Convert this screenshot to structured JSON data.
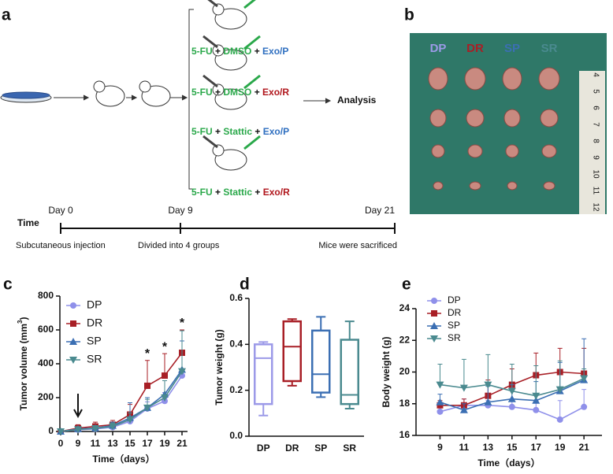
{
  "panel_labels": [
    "a",
    "b",
    "c",
    "d",
    "e"
  ],
  "panel_a": {
    "treatments": [
      [
        {
          "text": "5-FU",
          "color": "#2aa84a"
        },
        {
          "text": " + ",
          "color": "#111"
        },
        {
          "text": "DMSO",
          "color": "#2aa84a"
        },
        {
          "text": " + ",
          "color": "#111"
        },
        {
          "text": "Exo/P",
          "color": "#2f6fc0"
        }
      ],
      [
        {
          "text": "5-FU",
          "color": "#2aa84a"
        },
        {
          "text": " + ",
          "color": "#111"
        },
        {
          "text": "DMSO",
          "color": "#2aa84a"
        },
        {
          "text": " + ",
          "color": "#111"
        },
        {
          "text": "Exo/R",
          "color": "#b0161c"
        }
      ],
      [
        {
          "text": "5-FU",
          "color": "#2aa84a"
        },
        {
          "text": " + ",
          "color": "#111"
        },
        {
          "text": "Stattic",
          "color": "#2aa84a"
        },
        {
          "text": " + ",
          "color": "#111"
        },
        {
          "text": "Exo/P",
          "color": "#2f6fc0"
        }
      ],
      [
        {
          "text": "5-FU",
          "color": "#2aa84a"
        },
        {
          "text": " + ",
          "color": "#111"
        },
        {
          "text": "Stattic",
          "color": "#2aa84a"
        },
        {
          "text": " + ",
          "color": "#111"
        },
        {
          "text": "Exo/R",
          "color": "#b0161c"
        }
      ]
    ],
    "analysis": "Analysis",
    "time": "Time",
    "days": [
      "Day 0",
      "Day 9",
      "Day 21"
    ],
    "events": [
      "Subcutaneous injection",
      "Divided into 4 groups",
      "Mice were sacrificed"
    ]
  },
  "panel_b": {
    "groups": [
      {
        "text": "DP",
        "color": "#9c9ae8"
      },
      {
        "text": "DR",
        "color": "#a81f26"
      },
      {
        "text": "SP",
        "color": "#3b6fb3"
      },
      {
        "text": "SR",
        "color": "#4a8a8f"
      }
    ],
    "ruler": [
      "4",
      "5",
      "6",
      "7",
      "8",
      "9",
      "10",
      "11",
      "12"
    ]
  },
  "chart_data": [
    {
      "type": "line",
      "ylabel": {
        "text": "Tumor volume (mm",
        "sup": "3",
        "end": ")"
      },
      "xlabel": "Time（days）",
      "categories": [
        "0",
        "9",
        "11",
        "13",
        "15",
        "17",
        "19",
        "21"
      ],
      "ylim": [
        0,
        800
      ],
      "yticks": [
        0,
        200,
        400,
        600,
        800
      ],
      "series": [
        {
          "name": "DP",
          "color": "#8f90ea",
          "marker": "circle",
          "values": [
            0,
            10,
            15,
            25,
            60,
            135,
            180,
            330
          ],
          "errors": [
            0,
            10,
            10,
            15,
            20,
            40,
            50,
            140
          ]
        },
        {
          "name": "DR",
          "color": "#a81f26",
          "marker": "square",
          "values": [
            0,
            20,
            30,
            40,
            100,
            270,
            330,
            465
          ],
          "errors": [
            0,
            20,
            25,
            25,
            60,
            150,
            130,
            135
          ]
        },
        {
          "name": "SP",
          "color": "#3b6fb3",
          "marker": "triangle",
          "values": [
            0,
            15,
            20,
            35,
            80,
            140,
            220,
            365
          ],
          "errors": [
            0,
            10,
            15,
            20,
            90,
            60,
            80,
            170
          ]
        },
        {
          "name": "SR",
          "color": "#4a8a8f",
          "marker": "triangle-down",
          "values": [
            0,
            12,
            18,
            30,
            70,
            140,
            200,
            355
          ],
          "errors": [
            0,
            10,
            15,
            20,
            40,
            50,
            100,
            240
          ]
        }
      ],
      "annotations": [
        {
          "text": "*",
          "category": "17"
        },
        {
          "text": "*",
          "category": "19"
        },
        {
          "text": "*",
          "category": "21"
        }
      ],
      "legend": "upper left"
    },
    {
      "type": "box",
      "ylabel": "Tumor weight (g)",
      "categories": [
        "DP",
        "DR",
        "SP",
        "SR"
      ],
      "colors": [
        "#9c9ae8",
        "#a81f26",
        "#3b6fb3",
        "#4a8a8f"
      ],
      "min": [
        0.09,
        0.22,
        0.17,
        0.12
      ],
      "q1": [
        0.14,
        0.24,
        0.19,
        0.14
      ],
      "median": [
        0.34,
        0.39,
        0.27,
        0.18
      ],
      "q3": [
        0.4,
        0.5,
        0.46,
        0.42
      ],
      "max": [
        0.41,
        0.51,
        0.52,
        0.5
      ],
      "ylim": [
        0,
        0.6
      ],
      "yticks": [
        {
          "value": 0,
          "label": "0.0"
        },
        0.2,
        0.4,
        0.6
      ]
    },
    {
      "type": "line",
      "ylabel": "Body weight (g)",
      "xlabel": "Time（days）",
      "x": [
        9,
        11,
        13,
        15,
        17,
        19,
        21
      ],
      "xlim": [
        7,
        22.5
      ],
      "xticks": [
        9,
        11,
        13,
        15,
        17,
        19,
        21
      ],
      "ylim": [
        16,
        24
      ],
      "yticks": [
        16,
        18,
        20,
        22,
        24
      ],
      "series": [
        {
          "name": "DP",
          "color": "#8f90ea",
          "marker": "circle",
          "values": [
            17.5,
            17.9,
            17.9,
            17.8,
            17.6,
            17.0,
            17.8
          ],
          "errors": [
            0.3,
            0.4,
            0.3,
            0.5,
            0.6,
            1.2,
            1.1
          ]
        },
        {
          "name": "DR",
          "color": "#a81f26",
          "marker": "square",
          "values": [
            17.9,
            17.9,
            18.5,
            19.2,
            19.8,
            20.0,
            19.9
          ],
          "errors": [
            0.3,
            0.4,
            1.0,
            1.0,
            1.4,
            1.5,
            1.6
          ]
        },
        {
          "name": "SP",
          "color": "#3b6fb3",
          "marker": "triangle",
          "values": [
            18.1,
            17.6,
            18.1,
            18.3,
            18.2,
            18.8,
            19.5
          ],
          "errors": [
            0.5,
            0.4,
            1.0,
            0.9,
            1.2,
            1.8,
            2.6
          ]
        },
        {
          "name": "SR",
          "color": "#4a8a8f",
          "marker": "triangle-down",
          "values": [
            19.2,
            19.0,
            19.2,
            18.8,
            18.5,
            18.9,
            19.6
          ],
          "errors": [
            1.3,
            1.8,
            1.9,
            1.7,
            1.9,
            1.8,
            0.6
          ]
        }
      ],
      "legend": "upper left"
    }
  ]
}
